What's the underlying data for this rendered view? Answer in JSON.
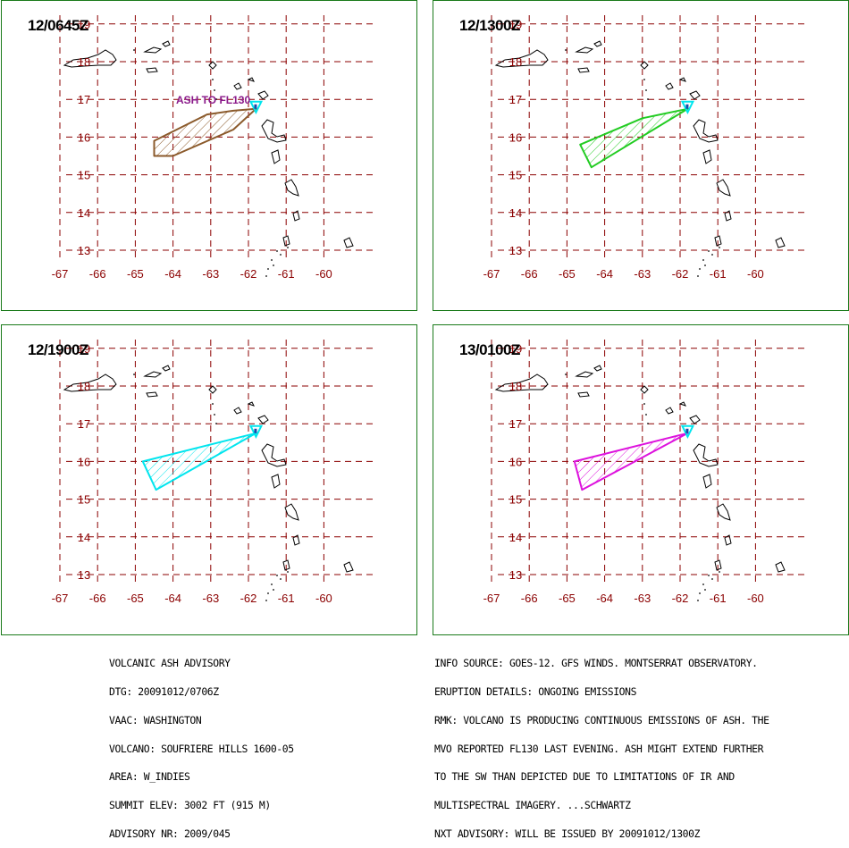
{
  "axes": {
    "lon_ticks": [
      "-67",
      "-66",
      "-65",
      "-64",
      "-63",
      "-62",
      "-61",
      "-60"
    ],
    "lat_ticks": [
      "13",
      "14",
      "15",
      "16",
      "17",
      "18",
      "19"
    ],
    "lon_range": [
      -67.5,
      -59.5
    ],
    "lat_range": [
      12.5,
      19.3
    ],
    "grid_color": "#8b0000",
    "grid_style": "dashed"
  },
  "volcano": {
    "lon": -61.8,
    "lat": 16.75,
    "marker_color": "#00e5ee"
  },
  "panels": [
    {
      "title": "12/0645Z",
      "polygon_color": "#8b5a2b",
      "annotation": "ASH TO FL130",
      "polygon": [
        [
          -61.8,
          16.75
        ],
        [
          -62.4,
          16.7
        ],
        [
          -63.1,
          16.6
        ],
        [
          -64.5,
          15.9
        ],
        [
          -64.5,
          15.5
        ],
        [
          -64.0,
          15.5
        ],
        [
          -62.4,
          16.2
        ]
      ]
    },
    {
      "title": "12/1300Z",
      "polygon_color": "#22cc22",
      "annotation": "",
      "polygon": [
        [
          -61.8,
          16.75
        ],
        [
          -63.0,
          16.5
        ],
        [
          -64.65,
          15.8
        ],
        [
          -64.35,
          15.2
        ]
      ]
    },
    {
      "title": "12/1900Z",
      "polygon_color": "#00e5ee",
      "annotation": "",
      "polygon": [
        [
          -61.8,
          16.75
        ],
        [
          -64.8,
          16.0
        ],
        [
          -64.45,
          15.25
        ]
      ]
    },
    {
      "title": "13/0100Z",
      "polygon_color": "#dd11dd",
      "annotation": "",
      "polygon": [
        [
          -61.8,
          16.75
        ],
        [
          -64.8,
          16.0
        ],
        [
          -64.6,
          15.25
        ]
      ]
    }
  ],
  "advisory_left": [
    "VOLCANIC ASH ADVISORY",
    "DTG: 20091012/0706Z",
    "VAAC: WASHINGTON",
    "VOLCANO: SOUFRIERE HILLS 1600-05",
    "AREA: W_INDIES",
    "SUMMIT ELEV: 3002 FT (915 M)",
    "ADVISORY NR: 2009/045"
  ],
  "advisory_right": [
    "INFO SOURCE: GOES-12. GFS WINDS. MONTSERRAT OBSERVATORY.",
    "ERUPTION DETAILS: ONGOING EMISSIONS",
    "RMK: VOLCANO IS PRODUCING CONTINUOUS EMISSIONS OF ASH. THE",
    "MVO REPORTED FL130 LAST EVENING. ASH MIGHT EXTEND FURTHER",
    "TO THE SW THAN DEPICTED DUE TO LIMITATIONS OF IR AND",
    "MULTISPECTRAL IMAGERY. ...SCHWARTZ",
    "NXT ADVISORY: WILL BE ISSUED BY 20091012/1300Z"
  ]
}
